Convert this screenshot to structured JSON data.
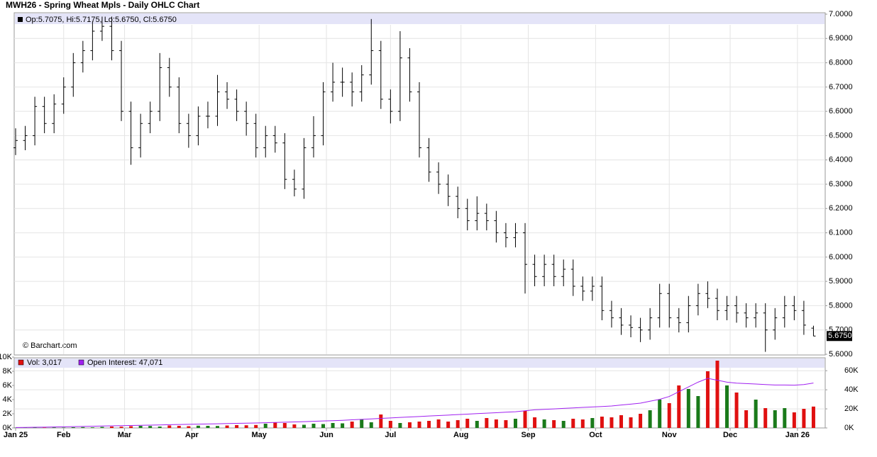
{
  "chart_data": {
    "type": "ohlc",
    "title": "MWH26 - Spring Wheat Mpls - Daily OHLC Chart",
    "info_label": "Op:5.7075, Hi:5.7175, Lo:5.6750, Cl:5.6750",
    "watermark": "© Barchart.com",
    "last_price_label": "5.6750",
    "last_price": 5.675,
    "xlim": [
      0,
      252
    ],
    "xticks": [
      {
        "value": 0,
        "label": "Jan 25"
      },
      {
        "value": 15,
        "label": "Feb"
      },
      {
        "value": 34,
        "label": "Mar"
      },
      {
        "value": 55,
        "label": "Apr"
      },
      {
        "value": 76,
        "label": "May"
      },
      {
        "value": 97,
        "label": "Jun"
      },
      {
        "value": 117,
        "label": "Jul"
      },
      {
        "value": 139,
        "label": "Aug"
      },
      {
        "value": 160,
        "label": "Sep"
      },
      {
        "value": 181,
        "label": "Oct"
      },
      {
        "value": 204,
        "label": "Nov"
      },
      {
        "value": 223,
        "label": "Dec"
      },
      {
        "value": 244,
        "label": "Jan 26"
      }
    ],
    "ylim": [
      5.6,
      7.0
    ],
    "yticks": [
      {
        "value": 5.6,
        "label": "5.6000"
      },
      {
        "value": 5.7,
        "label": "5.7000"
      },
      {
        "value": 5.8,
        "label": "5.8000"
      },
      {
        "value": 5.9,
        "label": "5.9000"
      },
      {
        "value": 6.0,
        "label": "6.0000"
      },
      {
        "value": 6.1,
        "label": "6.1000"
      },
      {
        "value": 6.2,
        "label": "6.2000"
      },
      {
        "value": 6.3,
        "label": "6.3000"
      },
      {
        "value": 6.4,
        "label": "6.4000"
      },
      {
        "value": 6.5,
        "label": "6.5000"
      },
      {
        "value": 6.6,
        "label": "6.6000"
      },
      {
        "value": 6.7,
        "label": "6.7000"
      },
      {
        "value": 6.8,
        "label": "6.8000"
      },
      {
        "value": 6.9,
        "label": "6.9000"
      },
      {
        "value": 7.0,
        "label": "7.0000"
      }
    ],
    "grid": true,
    "bar_color": "#000000",
    "x": [
      0,
      3,
      6,
      9,
      12,
      15,
      18,
      21,
      24,
      27,
      30,
      33,
      36,
      39,
      42,
      45,
      48,
      51,
      54,
      57,
      60,
      63,
      66,
      69,
      72,
      75,
      78,
      81,
      84,
      87,
      90,
      93,
      96,
      99,
      102,
      105,
      108,
      111,
      114,
      117,
      120,
      123,
      126,
      129,
      132,
      135,
      138,
      141,
      144,
      147,
      150,
      153,
      156,
      159,
      162,
      165,
      168,
      171,
      174,
      177,
      180,
      183,
      186,
      189,
      192,
      195,
      198,
      201,
      204,
      207,
      210,
      213,
      216,
      219,
      222,
      225,
      228,
      231,
      234,
      237,
      240,
      243,
      246,
      249
    ],
    "ohlc": [
      [
        6.45,
        6.53,
        6.42,
        6.48
      ],
      [
        6.48,
        6.54,
        6.44,
        6.5
      ],
      [
        6.5,
        6.66,
        6.46,
        6.62
      ],
      [
        6.62,
        6.66,
        6.51,
        6.55
      ],
      [
        6.55,
        6.67,
        6.51,
        6.63
      ],
      [
        6.63,
        6.74,
        6.59,
        6.7
      ],
      [
        6.7,
        6.84,
        6.66,
        6.8
      ],
      [
        6.8,
        6.89,
        6.76,
        6.85
      ],
      [
        6.85,
        6.97,
        6.81,
        6.93
      ],
      [
        6.93,
        6.99,
        6.89,
        6.95
      ],
      [
        6.95,
        6.99,
        6.81,
        6.85
      ],
      [
        6.85,
        6.89,
        6.56,
        6.6
      ],
      [
        6.6,
        6.64,
        6.38,
        6.45
      ],
      [
        6.45,
        6.59,
        6.41,
        6.55
      ],
      [
        6.55,
        6.64,
        6.51,
        6.6
      ],
      [
        6.6,
        6.84,
        6.56,
        6.78
      ],
      [
        6.78,
        6.82,
        6.66,
        6.7
      ],
      [
        6.7,
        6.74,
        6.51,
        6.55
      ],
      [
        6.55,
        6.59,
        6.45,
        6.5
      ],
      [
        6.5,
        6.62,
        6.46,
        6.58
      ],
      [
        6.58,
        6.64,
        6.53,
        6.58
      ],
      [
        6.58,
        6.75,
        6.54,
        6.68
      ],
      [
        6.68,
        6.72,
        6.61,
        6.65
      ],
      [
        6.65,
        6.69,
        6.56,
        6.6
      ],
      [
        6.6,
        6.64,
        6.5,
        6.55
      ],
      [
        6.55,
        6.59,
        6.41,
        6.45
      ],
      [
        6.45,
        6.54,
        6.41,
        6.5
      ],
      [
        6.5,
        6.54,
        6.43,
        6.47
      ],
      [
        6.47,
        6.51,
        6.28,
        6.32
      ],
      [
        6.32,
        6.36,
        6.25,
        6.28
      ],
      [
        6.28,
        6.49,
        6.24,
        6.45
      ],
      [
        6.45,
        6.58,
        6.41,
        6.5
      ],
      [
        6.5,
        6.72,
        6.46,
        6.68
      ],
      [
        6.68,
        6.8,
        6.64,
        6.72
      ],
      [
        6.72,
        6.78,
        6.66,
        6.72
      ],
      [
        6.72,
        6.76,
        6.62,
        6.68
      ],
      [
        6.68,
        6.79,
        6.64,
        6.75
      ],
      [
        6.75,
        6.98,
        6.71,
        6.85
      ],
      [
        6.85,
        6.89,
        6.61,
        6.65
      ],
      [
        6.65,
        6.69,
        6.55,
        6.6
      ],
      [
        6.6,
        6.93,
        6.56,
        6.82
      ],
      [
        6.82,
        6.86,
        6.64,
        6.68
      ],
      [
        6.68,
        6.72,
        6.41,
        6.45
      ],
      [
        6.45,
        6.49,
        6.31,
        6.35
      ],
      [
        6.35,
        6.39,
        6.26,
        6.3
      ],
      [
        6.3,
        6.34,
        6.21,
        6.25
      ],
      [
        6.25,
        6.29,
        6.16,
        6.2
      ],
      [
        6.2,
        6.24,
        6.11,
        6.15
      ],
      [
        6.15,
        6.25,
        6.11,
        6.18
      ],
      [
        6.18,
        6.22,
        6.11,
        6.15
      ],
      [
        6.15,
        6.19,
        6.06,
        6.1
      ],
      [
        6.1,
        6.14,
        6.04,
        6.08
      ],
      [
        6.08,
        6.14,
        6.04,
        6.1
      ],
      [
        6.1,
        6.14,
        5.85,
        5.97
      ],
      [
        5.97,
        6.01,
        5.88,
        5.92
      ],
      [
        5.92,
        6.01,
        5.88,
        5.97
      ],
      [
        5.97,
        6.01,
        5.88,
        5.92
      ],
      [
        5.92,
        5.99,
        5.88,
        5.95
      ],
      [
        5.95,
        5.99,
        5.84,
        5.88
      ],
      [
        5.88,
        5.92,
        5.82,
        5.86
      ],
      [
        5.86,
        5.92,
        5.82,
        5.88
      ],
      [
        5.88,
        5.92,
        5.74,
        5.78
      ],
      [
        5.78,
        5.82,
        5.71,
        5.75
      ],
      [
        5.75,
        5.79,
        5.68,
        5.72
      ],
      [
        5.72,
        5.76,
        5.67,
        5.71
      ],
      [
        5.71,
        5.75,
        5.65,
        5.7
      ],
      [
        5.7,
        5.79,
        5.66,
        5.75
      ],
      [
        5.75,
        5.89,
        5.71,
        5.85
      ],
      [
        5.85,
        5.89,
        5.71,
        5.75
      ],
      [
        5.75,
        5.79,
        5.69,
        5.73
      ],
      [
        5.73,
        5.84,
        5.69,
        5.8
      ],
      [
        5.8,
        5.89,
        5.76,
        5.85
      ],
      [
        5.85,
        5.9,
        5.79,
        5.83
      ],
      [
        5.83,
        5.87,
        5.74,
        5.78
      ],
      [
        5.78,
        5.84,
        5.74,
        5.8
      ],
      [
        5.8,
        5.84,
        5.73,
        5.77
      ],
      [
        5.77,
        5.81,
        5.71,
        5.75
      ],
      [
        5.75,
        5.81,
        5.71,
        5.77
      ],
      [
        5.77,
        5.81,
        5.61,
        5.7
      ],
      [
        5.7,
        5.79,
        5.66,
        5.75
      ],
      [
        5.75,
        5.84,
        5.71,
        5.8
      ],
      [
        5.8,
        5.84,
        5.74,
        5.78
      ],
      [
        5.78,
        5.82,
        5.68,
        5.72
      ],
      [
        5.7075,
        5.7175,
        5.675,
        5.675
      ]
    ],
    "volume_label": "Vol: 3,017",
    "volume_up_color": "#1a7a1a",
    "volume_down_color": "#e01010",
    "volume": [
      30,
      40,
      60,
      50,
      80,
      60,
      100,
      120,
      90,
      150,
      200,
      180,
      250,
      300,
      280,
      200,
      350,
      300,
      250,
      320,
      300,
      280,
      350,
      400,
      380,
      420,
      600,
      800,
      700,
      500,
      450,
      600,
      550,
      700,
      650,
      900,
      1200,
      800,
      1900,
      1000,
      700,
      800,
      900,
      1000,
      1200,
      900,
      1100,
      1300,
      1000,
      1400,
      1200,
      1100,
      1300,
      2400,
      1500,
      1200,
      1100,
      1000,
      1300,
      1200,
      1400,
      1600,
      1500,
      1800,
      1500,
      2000,
      2500,
      4000,
      3500,
      6000,
      5500,
      4500,
      8000,
      9500,
      6000,
      5000,
      2500,
      4000,
      2800,
      2500,
      2800,
      2200,
      2700,
      3017
    ],
    "vol_ylim": [
      0,
      10000
    ],
    "vol_yticks": [
      {
        "value": 0,
        "label": "0K"
      },
      {
        "value": 2000,
        "label": "2K"
      },
      {
        "value": 4000,
        "label": "4K"
      },
      {
        "value": 6000,
        "label": "6K"
      },
      {
        "value": 8000,
        "label": "8K"
      },
      {
        "value": 10000,
        "label": "10K"
      }
    ],
    "oi_label": "Open Interest: 47,071",
    "oi_color": "#a020f0",
    "open_interest": [
      500,
      600,
      700,
      800,
      1000,
      1200,
      1400,
      1600,
      1800,
      2000,
      2200,
      2400,
      2600,
      2800,
      3000,
      3200,
      3400,
      3600,
      3800,
      4000,
      4200,
      4400,
      4600,
      4800,
      5000,
      5200,
      5500,
      5800,
      6000,
      6300,
      6600,
      7000,
      7300,
      7600,
      8000,
      8500,
      9000,
      9500,
      10000,
      10500,
      11000,
      11500,
      12000,
      12500,
      13000,
      13500,
      14000,
      14500,
      15000,
      15500,
      16000,
      16500,
      17000,
      18000,
      19000,
      19500,
      20000,
      20500,
      21000,
      21500,
      22000,
      22500,
      23000,
      24000,
      25000,
      26000,
      28000,
      30000,
      33000,
      38000,
      43000,
      48000,
      52000,
      50000,
      48000,
      47000,
      46500,
      46000,
      45500,
      45000,
      45000,
      44800,
      45500,
      47071
    ],
    "y2lim": [
      0,
      75000
    ],
    "y2ticks": [
      {
        "value": 0,
        "label": "0K"
      },
      {
        "value": 20000,
        "label": "20K"
      },
      {
        "value": 40000,
        "label": "40K"
      },
      {
        "value": 60000,
        "label": "60K"
      }
    ]
  }
}
